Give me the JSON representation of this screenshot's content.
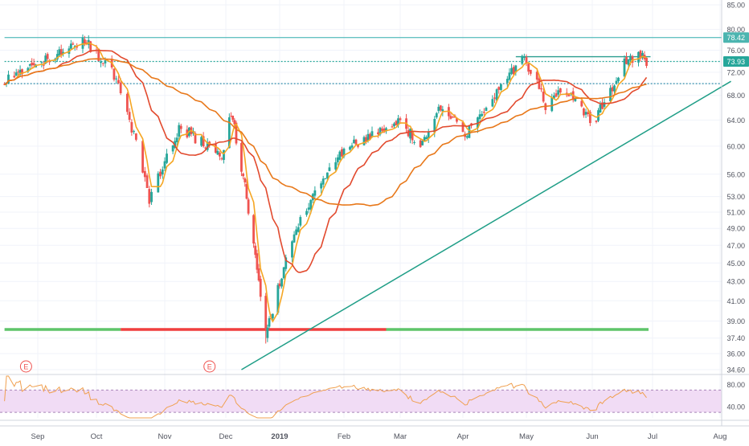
{
  "chart_data": {
    "type": "candlestick",
    "main_panel": {
      "y_scale": "log",
      "y_ticks": [
        "85.00",
        "80.00",
        "76.00",
        "72.00",
        "68.00",
        "64.00",
        "60.00",
        "56.00",
        "53.00",
        "51.00",
        "49.00",
        "47.00",
        "45.00",
        "43.00",
        "41.00",
        "39.00",
        "37.40",
        "36.00",
        "34.60"
      ],
      "y_tick_values": [
        85,
        80,
        76,
        72,
        68,
        64,
        60,
        56,
        53,
        51,
        49,
        47,
        45,
        43,
        41,
        39,
        37.4,
        36,
        34.6
      ],
      "price_badges": [
        {
          "text": "78.42",
          "value": 78.42,
          "color": "#4cb5b0"
        },
        {
          "text": "73.93",
          "value": 73.93,
          "color": "#26a69a"
        }
      ],
      "horizontal_lines": [
        {
          "value": 78.42,
          "style": "solid",
          "color": "#66c2c2",
          "from": "2018-08-15",
          "to": "2019-08-31"
        },
        {
          "value": 73.93,
          "style": "dotted",
          "color": "#26a69a",
          "from": "2018-08-15",
          "to": "2019-08-31"
        },
        {
          "value": 70.0,
          "style": "dotted",
          "color": "#1a7fa0",
          "from": "2018-08-15",
          "to": "2019-08-31"
        },
        {
          "value": 74.8,
          "style": "solid",
          "color": "#2a9d8f",
          "from": "2019-04-26",
          "to": "2019-06-30"
        }
      ],
      "support_zone": [
        {
          "from": "2018-08-15",
          "to": "2018-10-12",
          "value": 38.2,
          "color": "#5ec46a"
        },
        {
          "from": "2018-10-12",
          "to": "2019-02-22",
          "value": 38.2,
          "color": "#ef3f3f"
        },
        {
          "from": "2019-02-22",
          "to": "2019-06-29",
          "value": 38.2,
          "color": "#5ec46a"
        }
      ],
      "trendline": {
        "from": [
          "2018-12-10",
          34.6
        ],
        "to": [
          "2019-08-06",
          70.4
        ],
        "color": "#1f9e87"
      },
      "earnings_markers": [
        {
          "label": "E",
          "date": "2018-08-26"
        },
        {
          "label": "E",
          "date": "2018-11-23"
        }
      ],
      "moving_averages": [
        {
          "period_hint": "fast",
          "color": "#f5a623"
        },
        {
          "period_hint": "medium",
          "color": "#e24a2e"
        },
        {
          "period_hint": "slow",
          "color": "#e8781a"
        }
      ],
      "key_points": [
        {
          "x": "2018-08-15",
          "y": 70.5
        },
        {
          "x": "2018-09-25",
          "y": 78.0
        },
        {
          "x": "2018-10-11",
          "y": 70.5
        },
        {
          "x": "2018-10-25",
          "y": 52.5
        },
        {
          "x": "2018-11-09",
          "y": 63.0
        },
        {
          "x": "2018-11-29",
          "y": 58.0
        },
        {
          "x": "2018-12-04",
          "y": 65.5
        },
        {
          "x": "2018-12-24",
          "y": 37.4
        },
        {
          "x": "2019-01-10",
          "y": 49.5
        },
        {
          "x": "2019-02-01",
          "y": 59.5
        },
        {
          "x": "2019-03-01",
          "y": 64.0
        },
        {
          "x": "2019-03-10",
          "y": 60.0
        },
        {
          "x": "2019-03-22",
          "y": 66.5
        },
        {
          "x": "2019-04-01",
          "y": 61.5
        },
        {
          "x": "2019-04-30",
          "y": 74.5
        },
        {
          "x": "2019-05-10",
          "y": 66.5
        },
        {
          "x": "2019-05-20",
          "y": 69.0
        },
        {
          "x": "2019-06-01",
          "y": 63.0
        },
        {
          "x": "2019-06-18",
          "y": 74.0
        },
        {
          "x": "2019-06-26",
          "y": 75.0
        },
        {
          "x": "2019-06-28",
          "y": 73.9
        }
      ]
    },
    "rsi_panel": {
      "y_ticks": [
        "80.00",
        "40.00"
      ],
      "y_tick_values": [
        80,
        40
      ],
      "band": [
        30,
        70
      ],
      "line_color": "#f0a050",
      "fill_color": "#f1dcf5"
    },
    "x_axis": {
      "ticks": [
        {
          "label": "Sep",
          "date": "2018-09-01"
        },
        {
          "label": "Oct",
          "date": "2018-10-01"
        },
        {
          "label": "Nov",
          "date": "2018-11-01"
        },
        {
          "label": "Dec",
          "date": "2018-12-01"
        },
        {
          "label": "2019",
          "date": "2019-01-01",
          "bold": true
        },
        {
          "label": "Feb",
          "date": "2019-02-01"
        },
        {
          "label": "Mar",
          "date": "2019-03-01"
        },
        {
          "label": "Apr",
          "date": "2019-04-01"
        },
        {
          "label": "May",
          "date": "2019-05-01"
        },
        {
          "label": "Jun",
          "date": "2019-06-01"
        },
        {
          "label": "Jul",
          "date": "2019-07-01"
        },
        {
          "label": "Aug",
          "date": "2019-08-01"
        }
      ]
    },
    "colors": {
      "up": "#26a69a",
      "down": "#ef5350",
      "grid": "#f0f3fa",
      "axis_text": "#50535e"
    }
  }
}
